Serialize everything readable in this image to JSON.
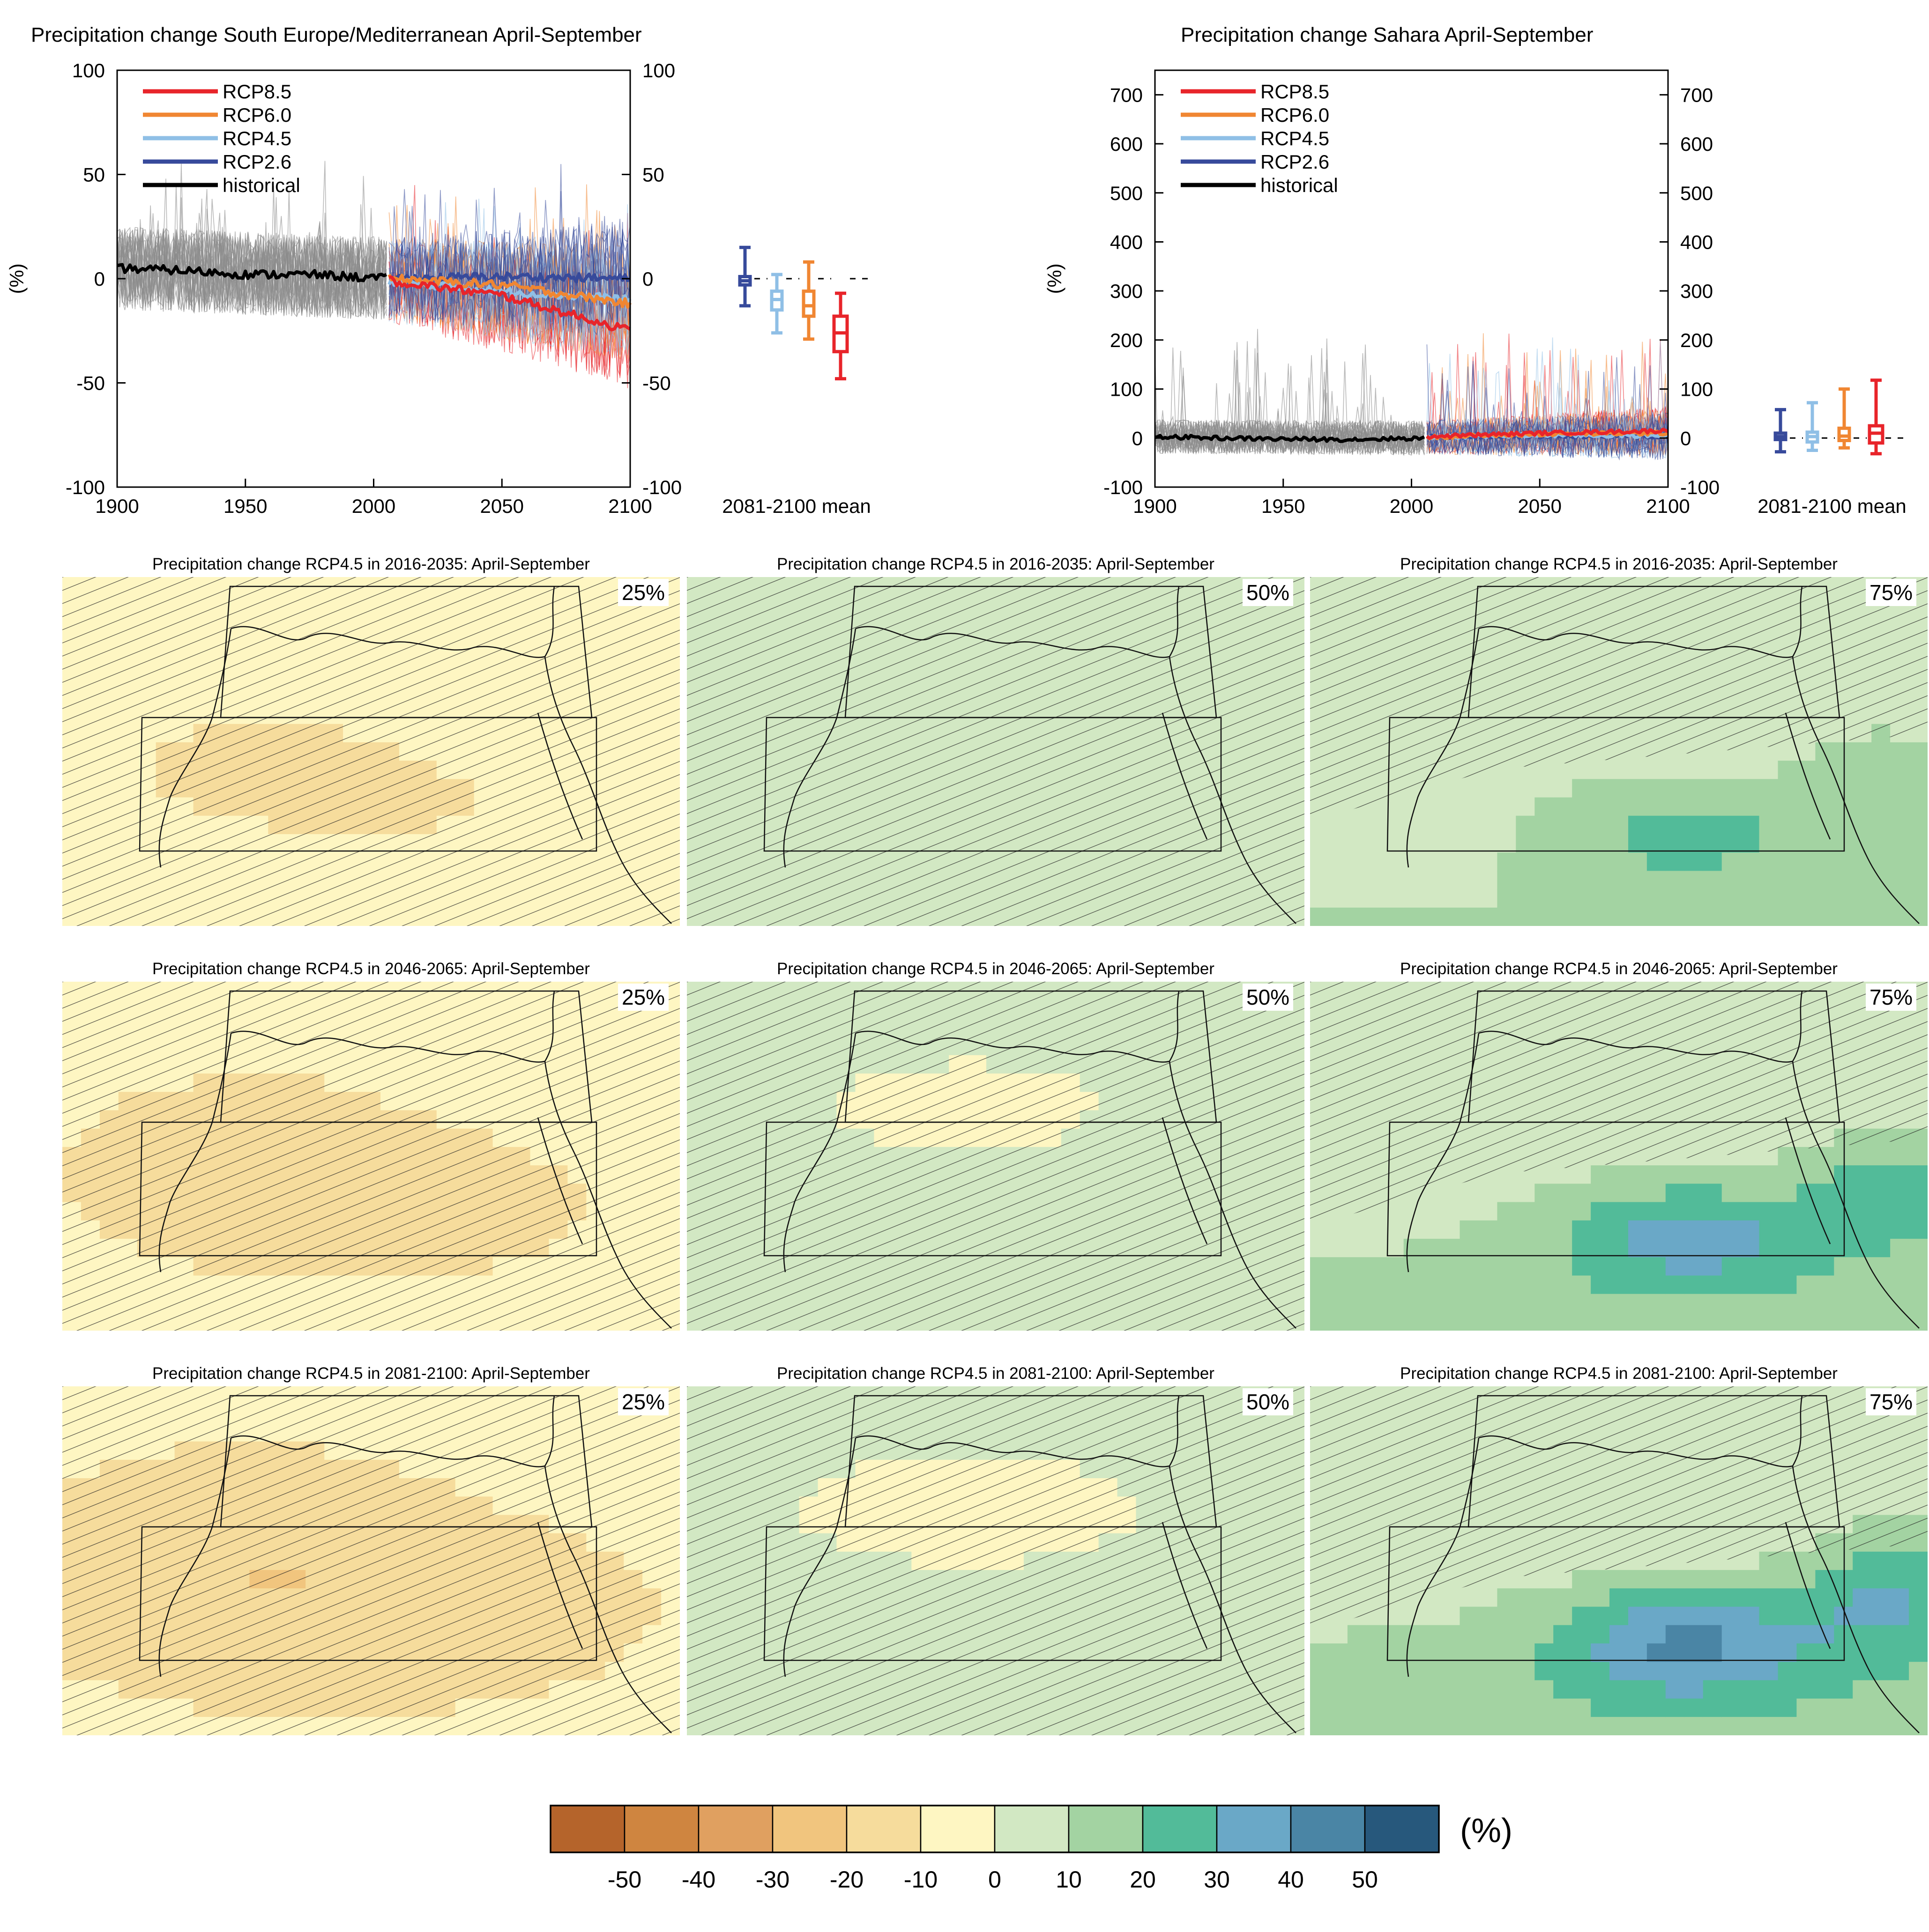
{
  "timeseries": [
    {
      "title": "Precipitation change South Europe/Mediterranean April-September",
      "ylabel": "(%)",
      "yticks": [
        "100",
        "50",
        "0",
        "-50",
        "-100"
      ],
      "xticks": [
        "1900",
        "1950",
        "2000",
        "2050",
        "2100"
      ],
      "mean_label": "2081-2100 mean",
      "legend": [
        "RCP8.5",
        "RCP6.0",
        "RCP4.5",
        "RCP2.6",
        "historical"
      ]
    },
    {
      "title": "Precipitation change Sahara April-September",
      "ylabel": "(%)",
      "yticks": [
        "700",
        "600",
        "500",
        "400",
        "300",
        "200",
        "100",
        "0",
        "-100"
      ],
      "xticks": [
        "1900",
        "1950",
        "2000",
        "2050",
        "2100"
      ],
      "mean_label": "2081-2100 mean",
      "legend": [
        "RCP8.5",
        "RCP6.0",
        "RCP4.5",
        "RCP2.6",
        "historical"
      ]
    }
  ],
  "maps": {
    "row_titles": [
      "Precipitation change RCP4.5 in 2016-2035: April-September",
      "Precipitation change RCP4.5 in 2046-2065: April-September",
      "Precipitation change RCP4.5 in 2081-2100: April-September"
    ],
    "percentiles": [
      "25%",
      "50%",
      "75%"
    ]
  },
  "colorbar": {
    "unit": "(%)",
    "labels": [
      "-50",
      "-40",
      "-30",
      "-20",
      "-10",
      "0",
      "10",
      "20",
      "30",
      "40",
      "50"
    ],
    "colors": [
      "#b5642b",
      "#cf8540",
      "#e0a060",
      "#f1c57e",
      "#f6dc9c",
      "#fef6c2",
      "#d2e8c3",
      "#a3d3a2",
      "#52bb99",
      "#6aa8c7",
      "#4a85a5",
      "#27587c"
    ]
  },
  "colors": {
    "rcp85": "#e8242a",
    "rcp60": "#f08632",
    "rcp45": "#8fbfe6",
    "rcp26": "#374a9b",
    "historical": "#000000"
  },
  "chart_data": [
    {
      "type": "line",
      "title": "Precipitation change South Europe/Mediterranean April-September",
      "ylabel": "(%)",
      "xlim": [
        1900,
        2100
      ],
      "ylim": [
        -100,
        100
      ],
      "series": [
        {
          "name": "historical",
          "x": [
            1900,
            1925,
            1950,
            1975,
            2005
          ],
          "values": [
            5,
            4,
            2,
            2,
            0
          ]
        },
        {
          "name": "RCP2.6",
          "x": [
            2006,
            2050,
            2100
          ],
          "values": [
            0,
            1,
            0
          ]
        },
        {
          "name": "RCP4.5",
          "x": [
            2006,
            2050,
            2100
          ],
          "values": [
            -1,
            -6,
            -10
          ]
        },
        {
          "name": "RCP6.0",
          "x": [
            2006,
            2050,
            2100
          ],
          "values": [
            0,
            -3,
            -12
          ]
        },
        {
          "name": "RCP8.5",
          "x": [
            2006,
            2050,
            2100
          ],
          "values": [
            -1,
            -8,
            -25
          ]
        }
      ],
      "mean_2081_2100": [
        {
          "name": "RCP2.6",
          "median": -1,
          "q25": -3,
          "q75": 1,
          "min": -13,
          "max": 15
        },
        {
          "name": "RCP4.5",
          "median": -10,
          "q25": -15,
          "q75": -6,
          "min": -26,
          "max": 2
        },
        {
          "name": "RCP6.0",
          "median": -13,
          "q25": -18,
          "q75": -6,
          "min": -29,
          "max": 8
        },
        {
          "name": "RCP8.5",
          "median": -26,
          "q25": -35,
          "q75": -18,
          "min": -48,
          "max": -7
        }
      ]
    },
    {
      "type": "line",
      "title": "Precipitation change Sahara April-September",
      "ylabel": "(%)",
      "xlim": [
        1900,
        2100
      ],
      "ylim": [
        -100,
        750
      ],
      "series": [
        {
          "name": "historical",
          "x": [
            1900,
            1925,
            1950,
            1975,
            2005
          ],
          "values": [
            3,
            0,
            -2,
            -3,
            0
          ]
        },
        {
          "name": "RCP2.6",
          "x": [
            2006,
            2050,
            2100
          ],
          "values": [
            2,
            4,
            3
          ]
        },
        {
          "name": "RCP4.5",
          "x": [
            2006,
            2050,
            2100
          ],
          "values": [
            2,
            6,
            5
          ]
        },
        {
          "name": "RCP6.0",
          "x": [
            2006,
            2050,
            2100
          ],
          "values": [
            2,
            8,
            10
          ]
        },
        {
          "name": "RCP8.5",
          "x": [
            2006,
            2050,
            2100
          ],
          "values": [
            3,
            10,
            15
          ]
        }
      ],
      "mean_2081_2100": [
        {
          "name": "RCP2.6",
          "median": 3,
          "q25": -3,
          "q75": 10,
          "min": -28,
          "max": 58
        },
        {
          "name": "RCP4.5",
          "median": 3,
          "q25": -8,
          "q75": 12,
          "min": -25,
          "max": 72
        },
        {
          "name": "RCP6.0",
          "median": 4,
          "q25": -5,
          "q75": 20,
          "min": -20,
          "max": 100
        },
        {
          "name": "RCP8.5",
          "median": 10,
          "q25": -10,
          "q75": 25,
          "min": -32,
          "max": 118
        }
      ]
    }
  ]
}
